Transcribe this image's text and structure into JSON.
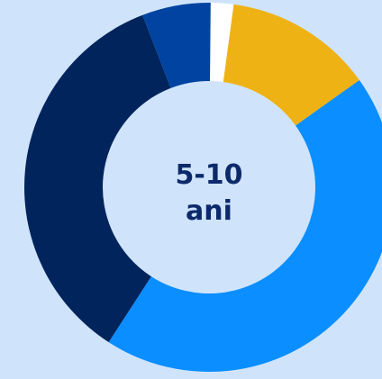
{
  "chart_data": {
    "type": "pie",
    "donut": true,
    "title": "",
    "center_label_lines": [
      "5-10",
      "ani"
    ],
    "slices": [
      {
        "value": 2.0,
        "color": "#ffffff"
      },
      {
        "value": 13.0,
        "color": "#efb215"
      },
      {
        "value": 44.0,
        "color": "#0b8eff"
      },
      {
        "value": 35.0,
        "color": "#02245c"
      },
      {
        "value": 6.0,
        "color": "#0043a0"
      }
    ],
    "legend": "none"
  }
}
